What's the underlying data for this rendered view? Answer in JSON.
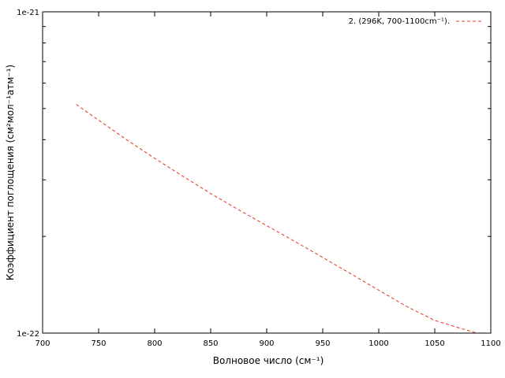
{
  "chart_data": {
    "type": "line",
    "xlabel": "Волновое число (см⁻¹)",
    "ylabel": "Коэффициент поглощения (см²мол⁻¹атм⁻¹)",
    "xlim": [
      700,
      1100
    ],
    "ylim": [
      1e-22,
      1e-21
    ],
    "yscale": "log",
    "x_ticks": [
      700,
      750,
      800,
      850,
      900,
      950,
      1000,
      1050,
      1100
    ],
    "y_tick_labels": [
      "1e-22",
      "1e-21"
    ],
    "grid": false,
    "legend_position": "top-right",
    "series": [
      {
        "name": "2. (296K, 700-1100cm⁻¹).",
        "color": "#e8321e",
        "style": "dashed",
        "x": [
          730,
          750,
          775,
          800,
          825,
          850,
          875,
          900,
          925,
          950,
          975,
          1000,
          1025,
          1050,
          1075,
          1088
        ],
        "y": [
          5.15e-22,
          4.6e-22,
          4e-22,
          3.5e-22,
          3.08e-22,
          2.72e-22,
          2.42e-22,
          2.16e-22,
          1.93e-22,
          1.72e-22,
          1.53e-22,
          1.36e-22,
          1.21e-22,
          1.095e-22,
          1.03e-22,
          1e-22
        ]
      }
    ]
  }
}
